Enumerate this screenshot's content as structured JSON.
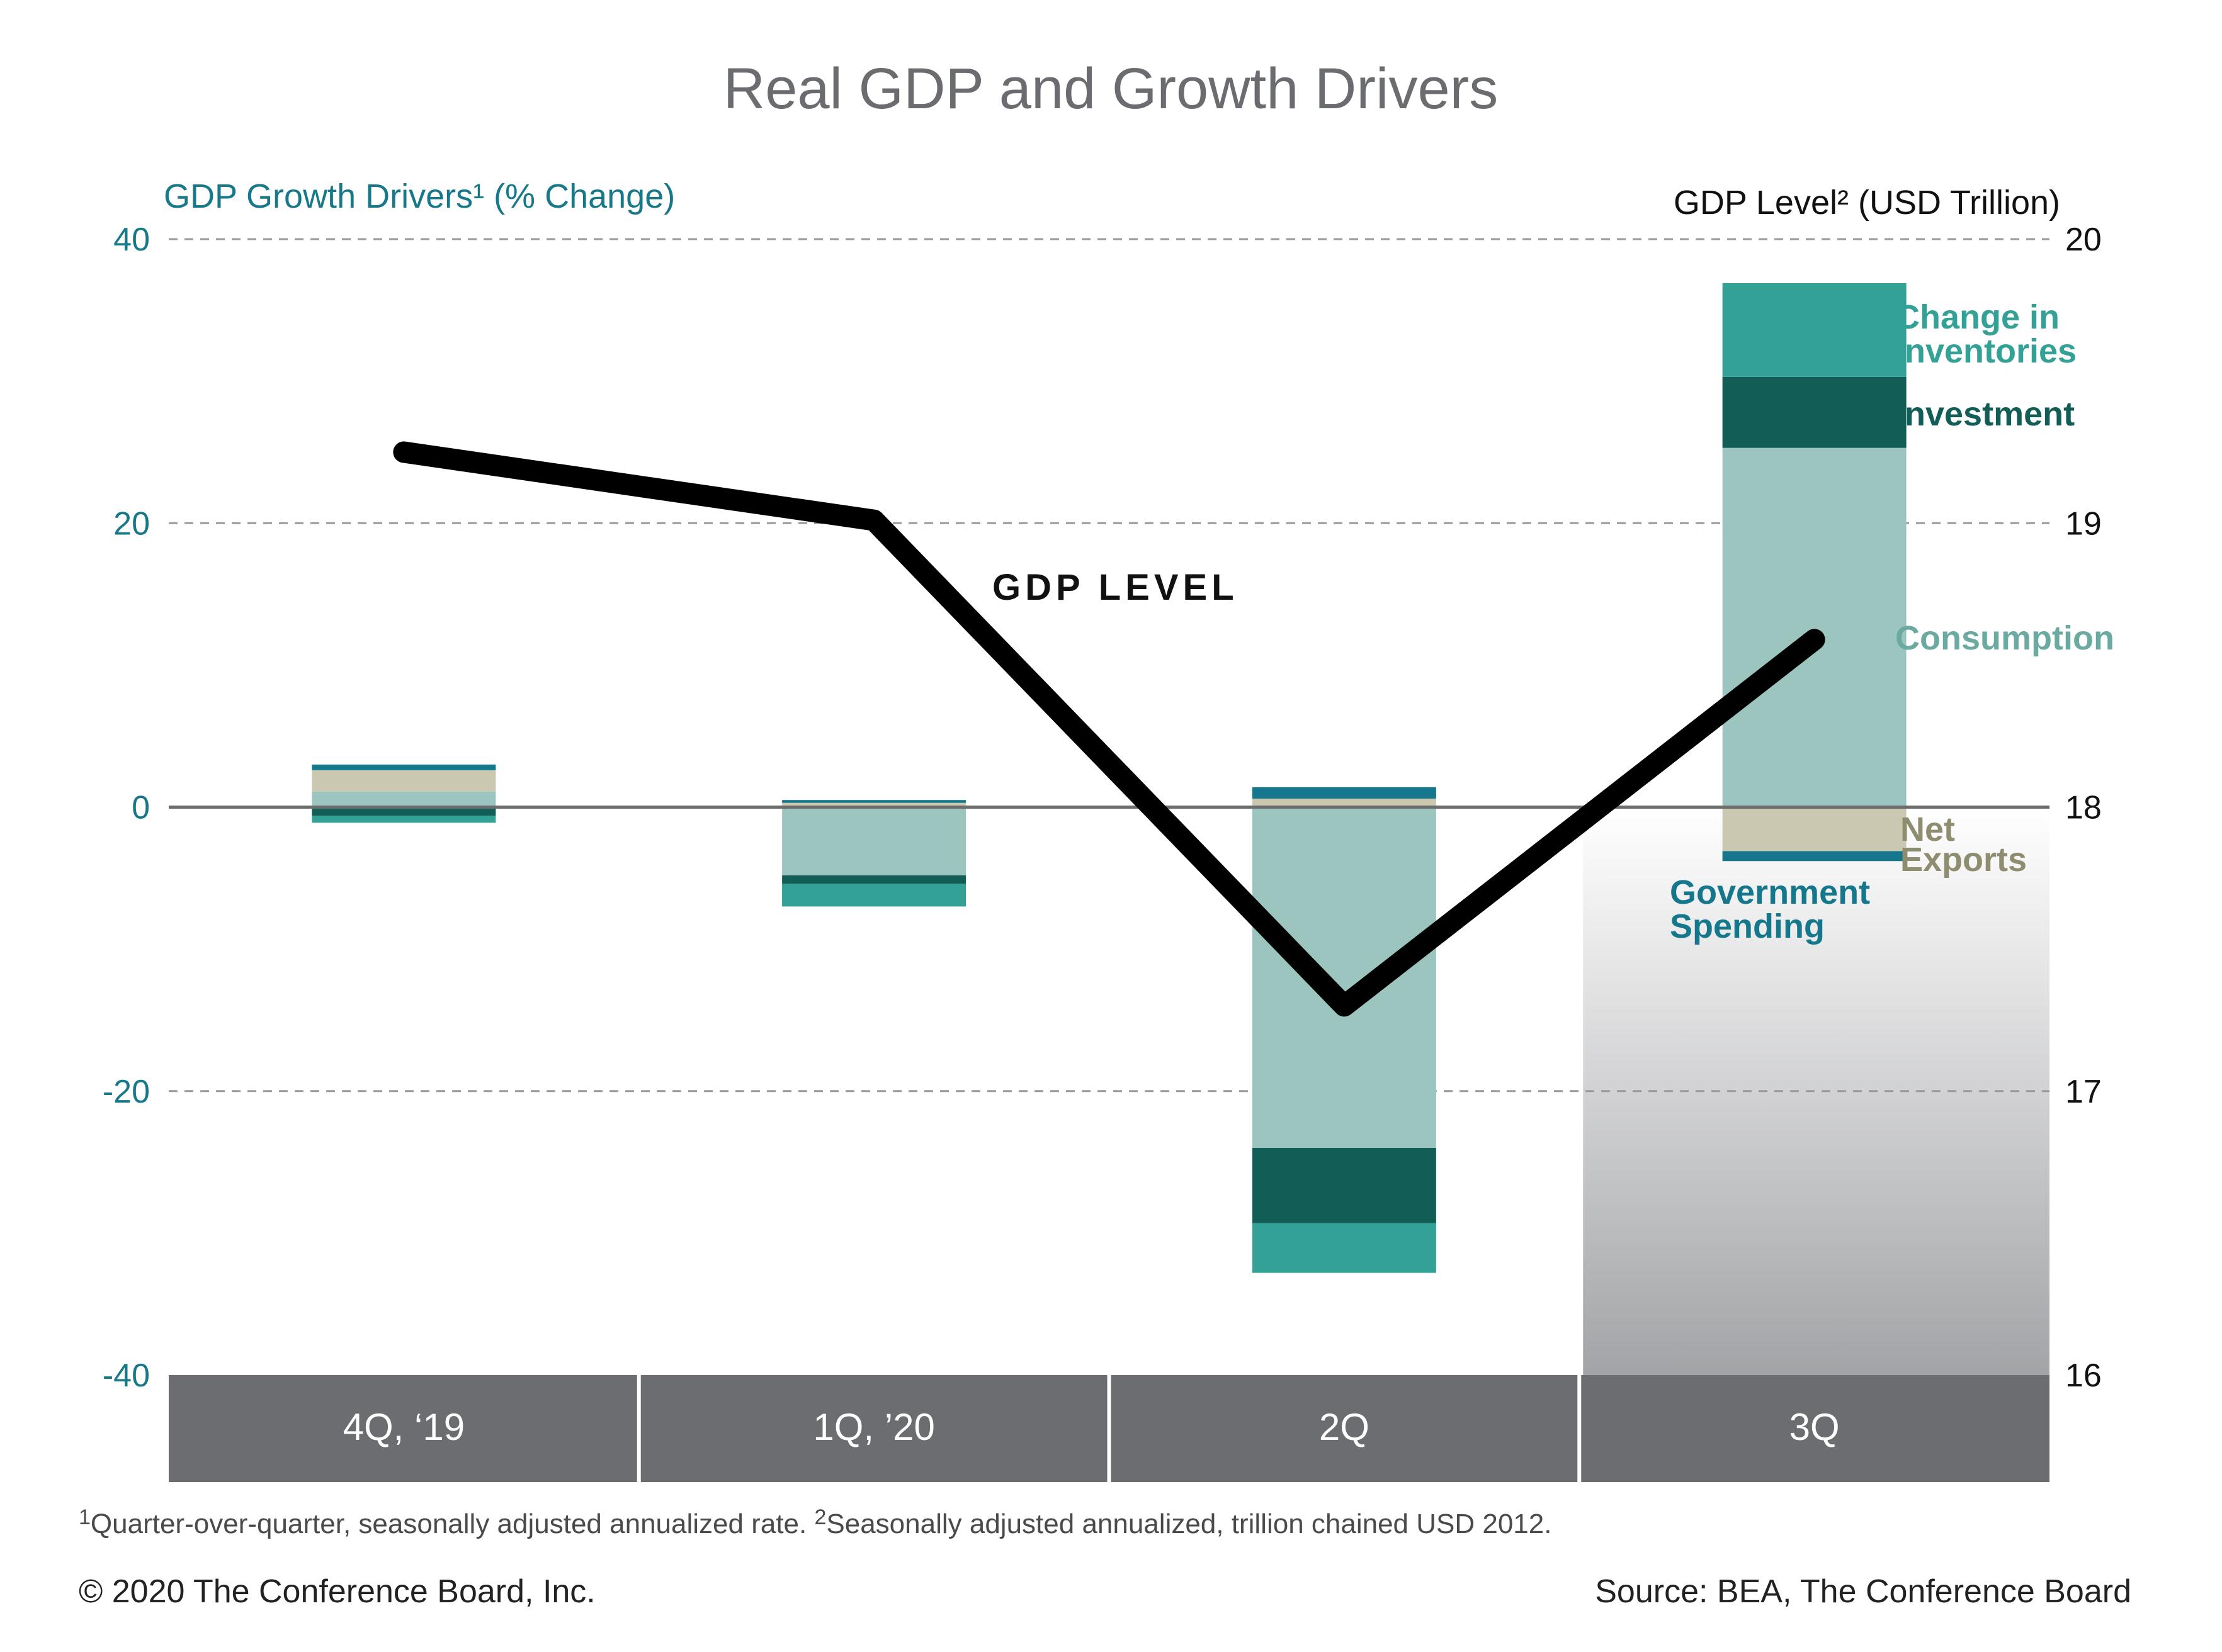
{
  "chart_data": {
    "type": "bar",
    "title": "Real GDP and Growth Drivers",
    "y_left_label": "GDP Growth Drivers¹ (% Change)",
    "y_right_label": "GDP Level² (USD Trillion)",
    "ylim_left": [
      -40,
      40
    ],
    "ylim_right": [
      16,
      20
    ],
    "yticks_left": [
      "40",
      "20",
      "0",
      "-20",
      "-40"
    ],
    "yticks_right": [
      "20",
      "19",
      "18",
      "17",
      "16"
    ],
    "grid": true,
    "categories": [
      "4Q, ‘19",
      "1Q, ’20",
      "2Q",
      "3Q"
    ],
    "series": [
      {
        "name": "Consumption",
        "color": "#9dc5bf",
        "values": [
          1.1,
          -4.8,
          -24.0,
          25.3
        ]
      },
      {
        "name": "Investment",
        "color": "#125e57",
        "values": [
          -0.6,
          -0.6,
          -5.3,
          5.0
        ]
      },
      {
        "name": "Change in Inventories",
        "color": "#33a196",
        "values": [
          -0.5,
          -1.6,
          -3.5,
          6.6
        ]
      },
      {
        "name": "Net Exports",
        "color": "#cac8b0",
        "values": [
          1.5,
          0.3,
          0.6,
          -3.1
        ]
      },
      {
        "name": "Government Spending",
        "color": "#14778b",
        "values": [
          0.4,
          0.2,
          0.8,
          -0.7
        ]
      }
    ],
    "line_series": {
      "name": "GDP LEVEL",
      "axis": "right",
      "color": "#000000",
      "values": [
        19.25,
        19.01,
        17.3,
        18.59
      ]
    },
    "shaded_region": {
      "category": "3Q",
      "from": 16,
      "to": 18
    }
  },
  "labels": {
    "change_in_inventories": [
      "Change in",
      "Inventories"
    ],
    "investment": "Investment",
    "consumption": "Consumption",
    "net_exports": [
      "Net",
      "Exports"
    ],
    "government_spending": [
      "Government",
      "Spending"
    ],
    "gdp_level": "GDP LEVEL"
  },
  "footnote": {
    "sup1": "1",
    "text1": "Quarter-over-quarter, seasonally adjusted annualized rate. ",
    "sup2": "2",
    "text2": "Seasonally adjusted annualized, trillion chained USD 2012."
  },
  "footer": {
    "copyright": "© 2020 The Conference Board, Inc.",
    "source": "Source: BEA, The Conference Board"
  },
  "colors": {
    "left_axis": "#17788a",
    "category_band": "#6c6d71",
    "grid": "#9a9a9a",
    "zero_line": "#6c6c6c",
    "consumption_label": "#6aaaa0",
    "inventories_label": "#33a196",
    "investment_label": "#125e57",
    "net_exports_label": "#8f8d70",
    "government_label": "#14778b"
  }
}
